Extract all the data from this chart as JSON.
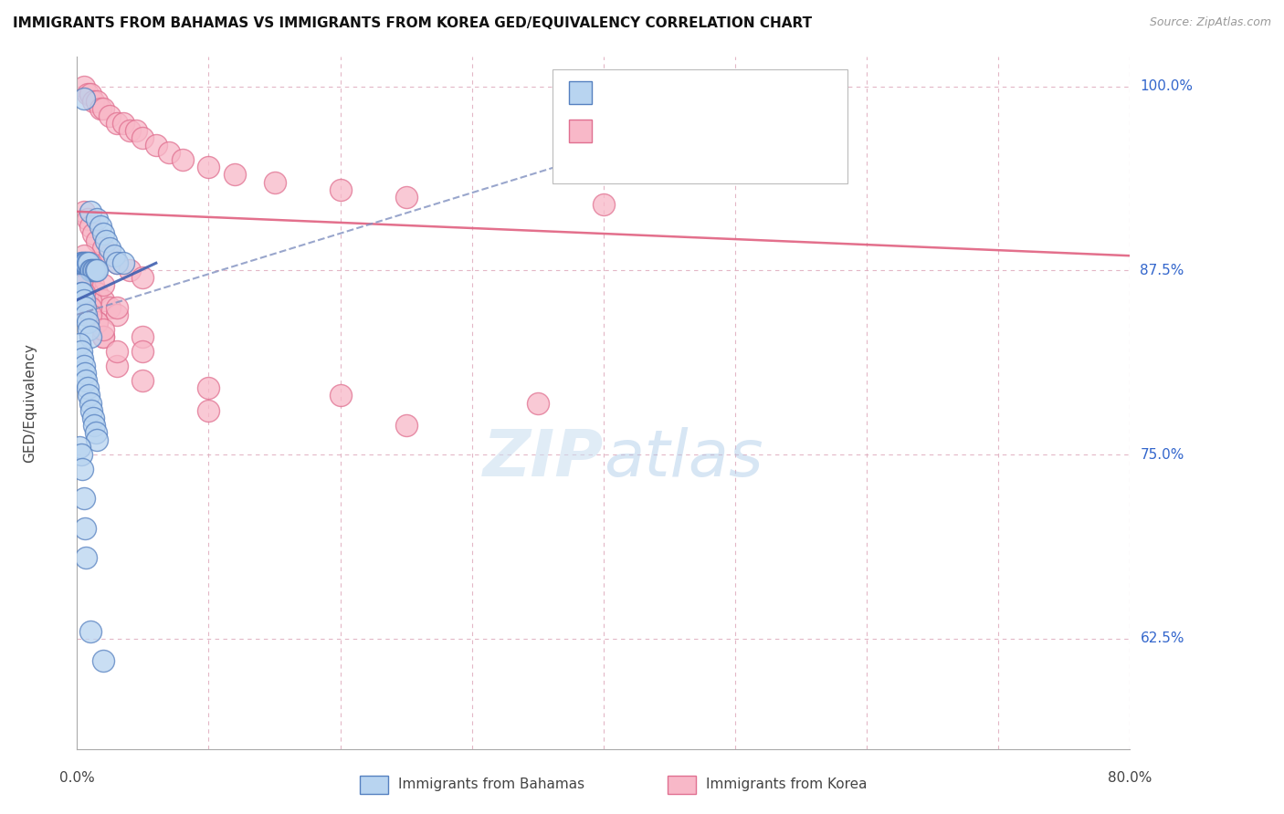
{
  "title": "IMMIGRANTS FROM BAHAMAS VS IMMIGRANTS FROM KOREA GED/EQUIVALENCY CORRELATION CHART",
  "source": "Source: ZipAtlas.com",
  "ylabel": "GED/Equivalency",
  "ytick_vals": [
    100.0,
    87.5,
    75.0,
    62.5
  ],
  "ytick_labels": [
    "100.0%",
    "87.5%",
    "75.0%",
    "62.5%"
  ],
  "xtick_vals": [
    0,
    10,
    20,
    30,
    40,
    50,
    60,
    70,
    80
  ],
  "xmin": 0.0,
  "xmax": 80.0,
  "ymin": 55.0,
  "ymax": 102.0,
  "color_bahamas_fill": "#b8d4f0",
  "color_bahamas_edge": "#5580c0",
  "color_korea_fill": "#f8b8c8",
  "color_korea_edge": "#e07090",
  "color_trend_bahamas": "#4060b0",
  "color_trend_korea": "#e06080",
  "color_dashed": "#8090c0",
  "bahamas_x": [
    0.5,
    1.0,
    1.5,
    1.8,
    2.0,
    2.2,
    2.5,
    2.8,
    3.0,
    3.5,
    0.3,
    0.4,
    0.5,
    0.6,
    0.7,
    0.8,
    0.9,
    1.0,
    1.1,
    1.2,
    1.3,
    1.4,
    1.5,
    0.2,
    0.3,
    0.4,
    0.5,
    0.6,
    0.7,
    0.8,
    0.9,
    1.0,
    0.2,
    0.3,
    0.4,
    0.5,
    0.6,
    0.7,
    0.8,
    0.9,
    1.0,
    1.1,
    1.2,
    1.3,
    1.4,
    1.5,
    0.2,
    0.3,
    0.4,
    0.5,
    0.6,
    0.7,
    1.0,
    2.0
  ],
  "bahamas_y": [
    99.2,
    91.5,
    91.0,
    90.5,
    90.0,
    89.5,
    89.0,
    88.5,
    88.0,
    88.0,
    88.0,
    88.0,
    88.0,
    88.0,
    88.0,
    88.0,
    88.0,
    87.5,
    87.5,
    87.5,
    87.5,
    87.5,
    87.5,
    86.5,
    86.0,
    86.0,
    85.5,
    85.0,
    84.5,
    84.0,
    83.5,
    83.0,
    82.5,
    82.0,
    81.5,
    81.0,
    80.5,
    80.0,
    79.5,
    79.0,
    78.5,
    78.0,
    77.5,
    77.0,
    76.5,
    76.0,
    75.5,
    75.0,
    74.0,
    72.0,
    70.0,
    68.0,
    63.0,
    61.0
  ],
  "korea_x": [
    0.5,
    0.8,
    1.0,
    1.2,
    1.5,
    1.8,
    2.0,
    2.5,
    3.0,
    3.5,
    4.0,
    4.5,
    5.0,
    6.0,
    7.0,
    8.0,
    10.0,
    12.0,
    15.0,
    20.0,
    25.0,
    40.0,
    0.5,
    0.8,
    1.0,
    1.2,
    1.5,
    2.0,
    2.5,
    3.0,
    4.0,
    5.0,
    0.5,
    0.8,
    1.0,
    1.2,
    1.5,
    2.0,
    2.5,
    3.0,
    0.5,
    0.8,
    1.0,
    1.5,
    2.0,
    3.0,
    0.5,
    1.0,
    1.5,
    2.0,
    3.0,
    5.0,
    10.0,
    20.0,
    1.0,
    2.0,
    3.0,
    5.0,
    10.0,
    25.0,
    0.5,
    1.0,
    2.0,
    5.0,
    35.0
  ],
  "korea_y": [
    100.0,
    99.5,
    99.5,
    99.0,
    99.0,
    98.5,
    98.5,
    98.0,
    97.5,
    97.5,
    97.0,
    97.0,
    96.5,
    96.0,
    95.5,
    95.0,
    94.5,
    94.0,
    93.5,
    93.0,
    92.5,
    92.0,
    91.5,
    91.0,
    90.5,
    90.0,
    89.5,
    89.0,
    88.5,
    88.0,
    87.5,
    87.0,
    88.5,
    87.5,
    87.0,
    86.5,
    86.0,
    85.5,
    85.0,
    84.5,
    87.0,
    86.0,
    85.5,
    84.0,
    83.0,
    81.0,
    86.5,
    85.0,
    84.0,
    83.0,
    82.0,
    80.0,
    79.5,
    79.0,
    88.0,
    86.5,
    85.0,
    83.0,
    78.0,
    77.0,
    86.0,
    84.5,
    83.5,
    82.0,
    78.5
  ],
  "dashed_line_x0": 0.0,
  "dashed_line_y0": 84.5,
  "dashed_line_x1": 58.0,
  "dashed_line_y1": 100.5,
  "trend_bahamas_x0": 0.0,
  "trend_bahamas_y0": 85.5,
  "trend_bahamas_x1": 6.0,
  "trend_bahamas_y1": 88.0,
  "trend_korea_x0": 0.0,
  "trend_korea_y0": 91.5,
  "trend_korea_x1": 80.0,
  "trend_korea_y1": 88.5,
  "watermark_zip": "ZIP",
  "watermark_atlas": "atlas",
  "bottom_label_bahamas": "Immigrants from Bahamas",
  "bottom_label_korea": "Immigrants from Korea"
}
